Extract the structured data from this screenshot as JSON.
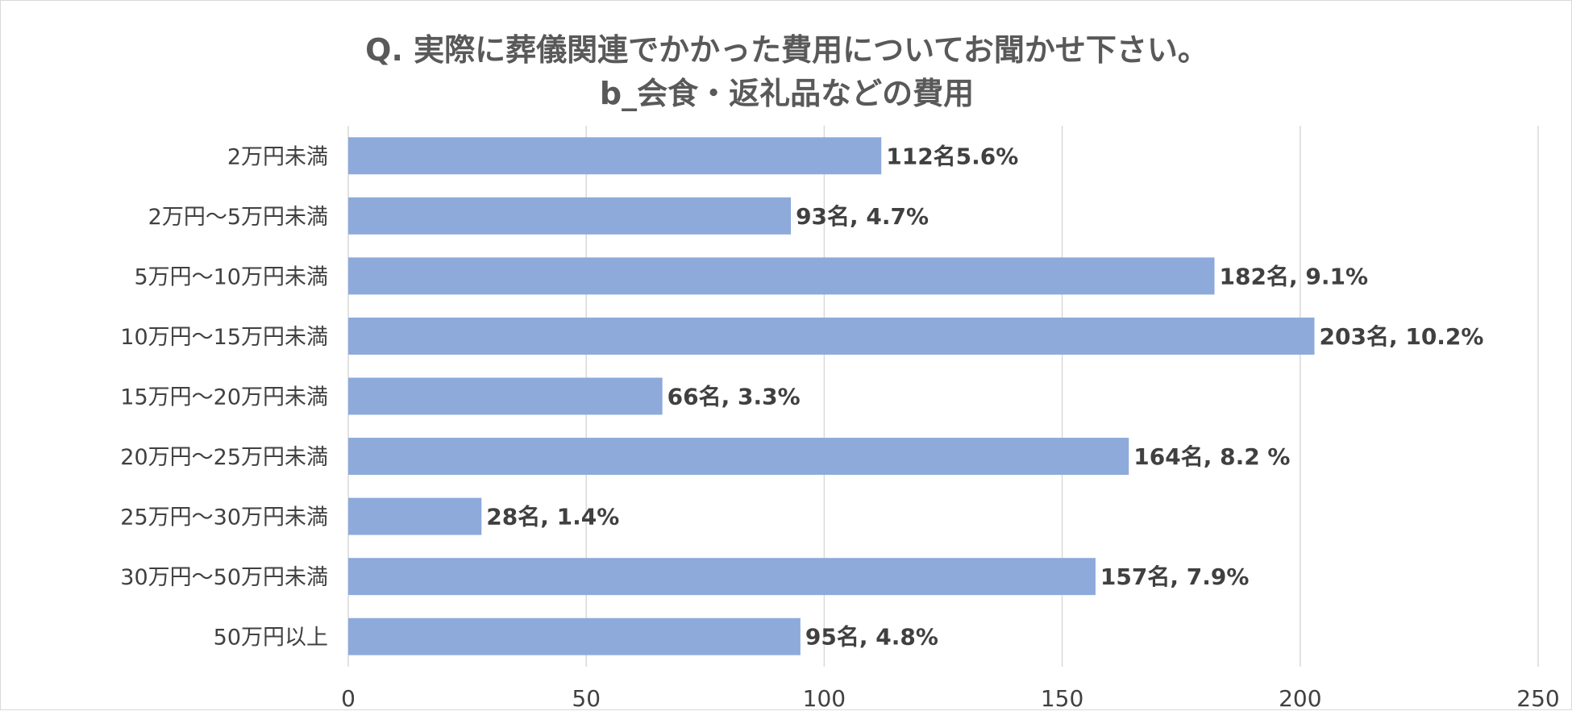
{
  "chart_data": {
    "type": "bar",
    "orientation": "horizontal",
    "title": "Q. 実際に葬儀関連でかかった費用についてお聞かせ下さい。",
    "subtitle": "b_会食・返礼品などの費用",
    "xlabel": "",
    "ylabel": "",
    "xlim": [
      0,
      250
    ],
    "x_ticks": [
      "0",
      "50",
      "100",
      "150",
      "200",
      "250"
    ],
    "grid": true,
    "categories": [
      "2万円未満",
      "2万円～5万円未満",
      "5万円～10万円未満",
      "10万円～15万円未満",
      "15万円～20万円未満",
      "20万円～25万円未満",
      "25万円～30万円未満",
      "30万円～50万円未満",
      "50万円以上"
    ],
    "values": [
      112,
      93,
      182,
      203,
      66,
      164,
      28,
      157,
      95
    ],
    "data_labels": [
      "112名5.6%",
      "93名, 4.7%",
      "182名, 9.1%",
      "203名, 10.2%",
      "66名, 3.3%",
      "164名, 8.2 %",
      "28名, 1.4%",
      "157名, 7.9%",
      "95名, 4.8%"
    ],
    "colors": {
      "bar": "#8eaadb",
      "grid": "#d9d9d9",
      "text": "#404040",
      "title": "#595959"
    }
  }
}
